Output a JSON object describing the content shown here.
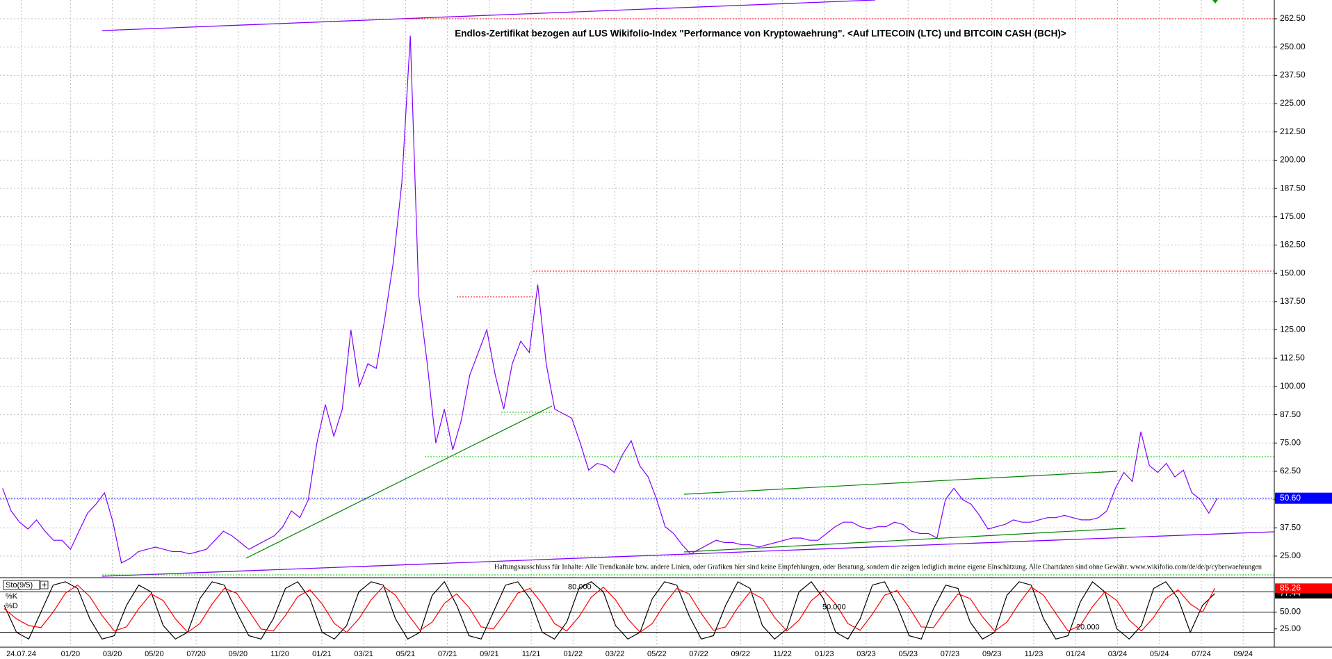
{
  "disclaimer": "Haftungsausschluss für Inhalte: Alle Trendkanäle bzw. andere Linien, oder Grafiken hier sind keine Empfehlungen, oder Beratung, sondern die zeigen lediglich meine eigene Einschätzung. Alle Chartdaten sind ohne Gewähr.  www.wikifolio.com/de/de/p/cyberwaehrungen",
  "time_axis_labels": [
    "24.07.24",
    "01/20",
    "03/20",
    "05/20",
    "07/20",
    "09/20",
    "11/20",
    "01/21",
    "03/21",
    "05/21",
    "07/21",
    "09/21",
    "11/21",
    "01/22",
    "03/22",
    "05/22",
    "07/22",
    "09/22",
    "11/22",
    "01/23",
    "03/23",
    "05/23",
    "07/23",
    "09/23",
    "11/23",
    "01/24",
    "03/24",
    "05/24",
    "07/24",
    "09/24"
  ],
  "chart_data": [
    {
      "type": "line",
      "title": "Endlos-Zertifikat bezogen auf LUS Wikifolio-Index \"Performance von Kryptowaehrung\". <Auf LITECOIN (LTC) und BITCOIN CASH (BCH)>",
      "color": "#8000ff",
      "values": [
        55,
        45,
        40,
        37,
        41,
        36,
        32,
        32,
        28,
        36,
        44,
        48,
        53,
        40,
        22,
        24,
        27,
        28,
        29,
        28,
        27,
        27,
        26,
        27,
        28,
        32,
        36,
        34,
        31,
        28,
        30,
        32,
        34,
        38,
        45,
        42,
        50,
        75,
        92,
        78,
        90,
        125,
        100,
        110,
        108,
        130,
        155,
        190,
        255,
        140,
        110,
        75,
        90,
        72,
        85,
        105,
        115,
        125,
        105,
        90,
        110,
        120,
        115,
        145,
        110,
        90,
        88,
        86,
        75,
        63,
        66,
        65,
        62,
        70,
        76,
        65,
        60,
        50,
        38,
        35,
        30,
        26,
        28,
        30,
        32,
        31,
        31,
        30,
        30,
        29,
        30,
        31,
        32,
        33,
        33,
        32,
        32,
        35,
        38,
        40,
        40,
        38,
        37,
        38,
        38,
        40,
        39,
        36,
        35,
        35,
        33,
        50,
        55,
        50,
        48,
        43,
        37,
        38,
        39,
        41,
        40,
        40,
        41,
        42,
        42,
        43,
        42,
        41,
        41,
        42,
        45,
        55,
        62,
        58,
        80,
        65,
        62,
        66,
        60,
        63,
        53,
        50,
        44,
        50.6
      ],
      "last_value": {
        "value": 50.6,
        "label": "50.60"
      },
      "last_value_color": "#0000ff",
      "ylim": [
        16.4,
        270.8
      ],
      "yticks": [
        {
          "value": 25,
          "label": "25.00"
        },
        {
          "value": 37.5,
          "label": "37.50"
        },
        {
          "value": 50,
          "label": "50.00"
        },
        {
          "value": 62.5,
          "label": "62.50"
        },
        {
          "value": 75,
          "label": "75.00"
        },
        {
          "value": 87.5,
          "label": "87.50"
        },
        {
          "value": 100,
          "label": "100.00"
        },
        {
          "value": 112.5,
          "label": "112.50"
        },
        {
          "value": 125,
          "label": "125.00"
        },
        {
          "value": 137.5,
          "label": "137.50"
        },
        {
          "value": 150,
          "label": "150.00"
        },
        {
          "value": 162.5,
          "label": "162.50"
        },
        {
          "value": 175,
          "label": "175.00"
        },
        {
          "value": 187.5,
          "label": "187.50"
        },
        {
          "value": 200,
          "label": "200.00"
        },
        {
          "value": 212.5,
          "label": "212.50"
        },
        {
          "value": 225,
          "label": "225.00"
        },
        {
          "value": 237.5,
          "label": "237.50"
        },
        {
          "value": 250,
          "label": "250.00"
        },
        {
          "value": 262.5,
          "label": "262.50"
        }
      ],
      "grid": true
    },
    {
      "type": "line",
      "title": "Sto(9/5)",
      "series": [
        {
          "name": "%K",
          "color": "#000000",
          "values": [
            60,
            20,
            10,
            50,
            90,
            95,
            85,
            40,
            10,
            15,
            60,
            90,
            80,
            30,
            10,
            20,
            70,
            95,
            90,
            50,
            15,
            10,
            40,
            85,
            95,
            70,
            20,
            10,
            30,
            80,
            95,
            90,
            40,
            10,
            20,
            75,
            95,
            60,
            15,
            10,
            50,
            90,
            95,
            70,
            20,
            10,
            35,
            85,
            95,
            80,
            30,
            10,
            20,
            70,
            95,
            90,
            45,
            10,
            15,
            60,
            95,
            85,
            30,
            10,
            25,
            80,
            95,
            70,
            20,
            10,
            40,
            90,
            95,
            60,
            15,
            10,
            55,
            90,
            85,
            35,
            10,
            20,
            75,
            95,
            90,
            40,
            10,
            15,
            65,
            95,
            80,
            25,
            10,
            30,
            85,
            95,
            70,
            20,
            60,
            77.44
          ]
        },
        {
          "name": "%D",
          "color": "#ff0000",
          "values": [
            55,
            40,
            30,
            27,
            50,
            78,
            90,
            73,
            45,
            22,
            28,
            55,
            77,
            67,
            40,
            20,
            33,
            62,
            85,
            78,
            52,
            25,
            22,
            45,
            73,
            83,
            62,
            33,
            20,
            40,
            68,
            88,
            75,
            47,
            23,
            35,
            63,
            77,
            57,
            28,
            25,
            50,
            78,
            85,
            62,
            33,
            22,
            43,
            72,
            87,
            68,
            40,
            20,
            33,
            62,
            85,
            77,
            48,
            23,
            28,
            57,
            80,
            70,
            42,
            22,
            38,
            67,
            82,
            62,
            33,
            23,
            47,
            75,
            82,
            57,
            28,
            27,
            53,
            77,
            70,
            43,
            22,
            35,
            63,
            87,
            75,
            48,
            22,
            30,
            58,
            80,
            67,
            38,
            22,
            42,
            70,
            83,
            62,
            50,
            85.26
          ]
        }
      ],
      "ylim": [
        0,
        100
      ],
      "yticks": [
        {
          "value": 25,
          "label": "25.00"
        },
        {
          "value": 50,
          "label": "50.00"
        }
      ],
      "levels": [
        {
          "value": 80,
          "label": "80.000"
        },
        {
          "value": 50,
          "label": "50.000"
        },
        {
          "value": 20,
          "label": "20.000"
        }
      ]
    }
  ]
}
